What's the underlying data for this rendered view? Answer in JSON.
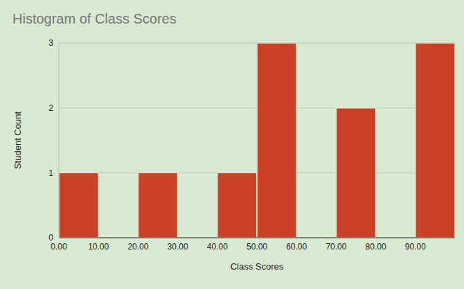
{
  "chart_data": {
    "type": "histogram",
    "title": "Histogram of Class Scores",
    "x_label": "Class Scores",
    "y_label": "Student Count",
    "bins": [
      0,
      10,
      20,
      30,
      40,
      50,
      60,
      70,
      80,
      90,
      100
    ],
    "values": [
      1,
      0,
      1,
      0,
      1,
      3,
      0,
      2,
      0,
      3
    ],
    "color": "#cc4125",
    "xlim": [
      0,
      100
    ],
    "xticks": [
      {
        "value": 0,
        "label": "0.00"
      },
      {
        "value": 10,
        "label": "10.00"
      },
      {
        "value": 20,
        "label": "20.00"
      },
      {
        "value": 30,
        "label": "30.00"
      },
      {
        "value": 40,
        "label": "40.00"
      },
      {
        "value": 50,
        "label": "50.00"
      },
      {
        "value": 60,
        "label": "60.00"
      },
      {
        "value": 70,
        "label": "70.00"
      },
      {
        "value": 80,
        "label": "80.00"
      },
      {
        "value": 90,
        "label": "90.00"
      }
    ],
    "ylim": [
      0,
      3
    ],
    "yticks": [
      0,
      1,
      2,
      3
    ],
    "grid": true
  }
}
